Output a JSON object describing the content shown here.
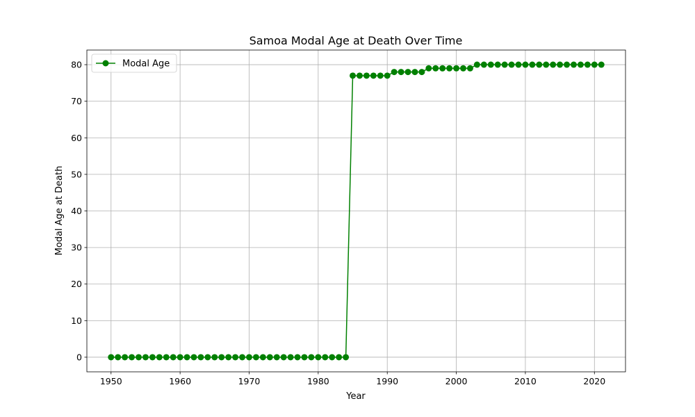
{
  "chart_data": {
    "type": "line",
    "title": "Samoa Modal Age at Death Over Time",
    "xlabel": "Year",
    "ylabel": "Modal Age at Death",
    "xlim": [
      1946.5,
      2024.5
    ],
    "ylim": [
      -4,
      84
    ],
    "xticks": [
      1950,
      1960,
      1970,
      1980,
      1990,
      2000,
      2010,
      2020
    ],
    "yticks": [
      0,
      10,
      20,
      30,
      40,
      50,
      60,
      70,
      80
    ],
    "grid": true,
    "legend_position": "upper-left",
    "series": [
      {
        "name": "Modal Age",
        "color": "#008000",
        "marker": "circle",
        "x": [
          1950,
          1951,
          1952,
          1953,
          1954,
          1955,
          1956,
          1957,
          1958,
          1959,
          1960,
          1961,
          1962,
          1963,
          1964,
          1965,
          1966,
          1967,
          1968,
          1969,
          1970,
          1971,
          1972,
          1973,
          1974,
          1975,
          1976,
          1977,
          1978,
          1979,
          1980,
          1981,
          1982,
          1983,
          1984,
          1985,
          1986,
          1987,
          1988,
          1989,
          1990,
          1991,
          1992,
          1993,
          1994,
          1995,
          1996,
          1997,
          1998,
          1999,
          2000,
          2001,
          2002,
          2003,
          2004,
          2005,
          2006,
          2007,
          2008,
          2009,
          2010,
          2011,
          2012,
          2013,
          2014,
          2015,
          2016,
          2017,
          2018,
          2019,
          2020,
          2021
        ],
        "values": [
          0,
          0,
          0,
          0,
          0,
          0,
          0,
          0,
          0,
          0,
          0,
          0,
          0,
          0,
          0,
          0,
          0,
          0,
          0,
          0,
          0,
          0,
          0,
          0,
          0,
          0,
          0,
          0,
          0,
          0,
          0,
          0,
          0,
          0,
          0,
          77,
          77,
          77,
          77,
          77,
          77,
          78,
          78,
          78,
          78,
          78,
          79,
          79,
          79,
          79,
          79,
          79,
          79,
          80,
          80,
          80,
          80,
          80,
          80,
          80,
          80,
          80,
          80,
          80,
          80,
          80,
          80,
          80,
          80,
          80,
          80,
          80
        ]
      }
    ]
  }
}
